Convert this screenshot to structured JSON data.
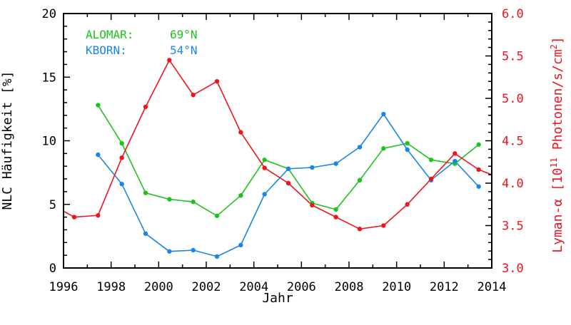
{
  "chart_data": {
    "type": "line",
    "xlabel": "Jahr",
    "ylabel_left": "NLC Häufigkeit [%]",
    "ylabel_right": {
      "prefix": "Lyman-α [10",
      "exponent": "11",
      "middle": " Photonen/s/cm",
      "exponent2": "2",
      "suffix": "]"
    },
    "xlim": [
      1996,
      2014
    ],
    "ylim_left": [
      0,
      20
    ],
    "ylim_right": [
      3.0,
      6.0
    ],
    "x_ticks": [
      "1996",
      "1998",
      "2000",
      "2002",
      "2004",
      "2006",
      "2008",
      "2010",
      "2012",
      "2014"
    ],
    "x_tick_values": [
      1996,
      1998,
      2000,
      2002,
      2004,
      2006,
      2008,
      2010,
      2012,
      2014
    ],
    "y_left_ticks": [
      "0",
      "5",
      "10",
      "15",
      "20"
    ],
    "y_left_tick_values": [
      0,
      5,
      10,
      15,
      20
    ],
    "y_right_ticks": [
      "3.0",
      "3.5",
      "4.0",
      "4.5",
      "5.0",
      "5.5",
      "6.0"
    ],
    "y_right_tick_values": [
      3.0,
      3.5,
      4.0,
      4.5,
      5.0,
      5.5,
      6.0
    ],
    "legend": {
      "placement": "top-left",
      "entries": [
        {
          "name": "ALOMAR:",
          "value": "69°N",
          "color": "#1ec31e"
        },
        {
          "name": "KBORN:",
          "value": "54°N",
          "color": "#1a87e8"
        }
      ]
    },
    "series": [
      {
        "axis": "left",
        "color": "#1ec31e",
        "x": [
          1997.45,
          1998.45,
          1999.45,
          2000.45,
          2001.45,
          2002.45,
          2003.45,
          2004.45,
          2005.45,
          2006.45,
          2007.45,
          2008.45,
          2009.45,
          2010.45,
          2011.45,
          2012.45,
          2013.45
        ],
        "y": [
          12.8,
          9.8,
          5.9,
          5.4,
          5.2,
          4.1,
          5.7,
          8.5,
          7.8,
          5.1,
          4.6,
          6.9,
          9.4,
          9.8,
          8.5,
          8.2,
          9.7
        ]
      },
      {
        "axis": "left",
        "color": "#1a87e8",
        "x": [
          1997.45,
          1998.45,
          1999.45,
          2000.45,
          2001.45,
          2002.45,
          2003.45,
          2004.45,
          2005.45,
          2006.45,
          2007.45,
          2008.45,
          2009.45,
          2010.45,
          2011.45,
          2012.45,
          2013.45
        ],
        "y": [
          8.9,
          6.6,
          2.7,
          1.3,
          1.4,
          0.9,
          1.8,
          5.8,
          7.8,
          7.9,
          8.2,
          9.5,
          12.1,
          9.3,
          6.9,
          8.4,
          6.4
        ]
      },
      {
        "axis": "right",
        "color": "#f0141e",
        "x": [
          1996.0,
          1996.45,
          1997.45,
          1998.45,
          1999.45,
          2000.45,
          2001.45,
          2002.45,
          2003.45,
          2004.45,
          2005.45,
          2006.45,
          2007.45,
          2008.45,
          2009.45,
          2010.45,
          2011.45,
          2012.45,
          2013.45,
          2014.0
        ],
        "y": [
          3.67,
          3.6,
          3.62,
          4.3,
          4.9,
          5.45,
          5.04,
          5.2,
          4.6,
          4.18,
          4.0,
          3.74,
          3.6,
          3.46,
          3.5,
          3.75,
          4.05,
          4.35,
          4.16,
          4.1
        ]
      }
    ]
  }
}
